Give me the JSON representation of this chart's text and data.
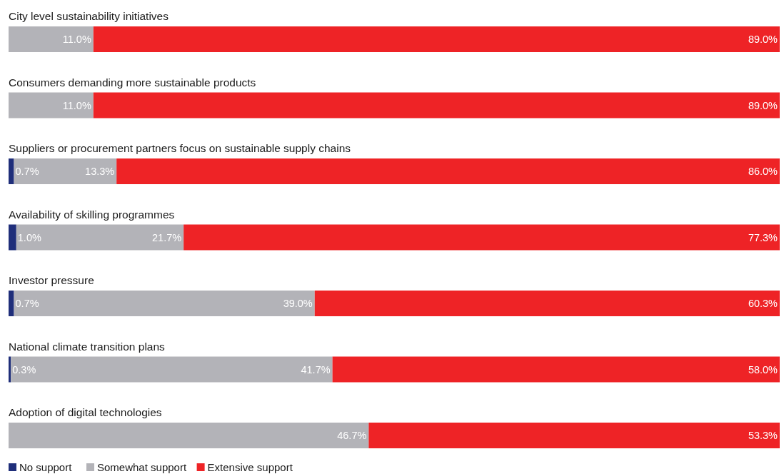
{
  "chart_data": {
    "type": "bar",
    "orientation": "horizontal",
    "stacked": true,
    "legend": "bottom left",
    "categories": [
      "City level sustainability initiatives",
      "Consumers demanding more sustainable products",
      "Suppliers or procurement partners focus on sustainable supply chains",
      "Availability of skilling programmes",
      "Investor pressure",
      "National climate transition plans",
      "Adoption of digital technologies"
    ],
    "series": [
      {
        "name": "No support",
        "color": "#1f2e7a",
        "values": [
          null,
          null,
          0.7,
          1.0,
          0.7,
          0.3,
          null
        ],
        "value_labels": [
          null,
          null,
          "0.7%",
          "1.0%",
          "0.7%",
          "0.3%",
          null
        ]
      },
      {
        "name": "Somewhat support",
        "color": "#b3b3b8",
        "values": [
          11.0,
          11.0,
          13.3,
          21.7,
          39.0,
          41.7,
          46.7
        ],
        "value_labels": [
          "11.0%",
          "11.0%",
          "13.3%",
          "21.7%",
          "39.0%",
          "41.7%",
          "46.7%"
        ]
      },
      {
        "name": "Extensive support",
        "color": "#ee2326",
        "values": [
          89.0,
          89.0,
          86.0,
          77.3,
          60.3,
          58.0,
          53.3
        ],
        "value_labels": [
          "89.0%",
          "89.0%",
          "86.0%",
          "77.3%",
          "60.3%",
          "58.0%",
          "53.3%"
        ]
      }
    ]
  }
}
